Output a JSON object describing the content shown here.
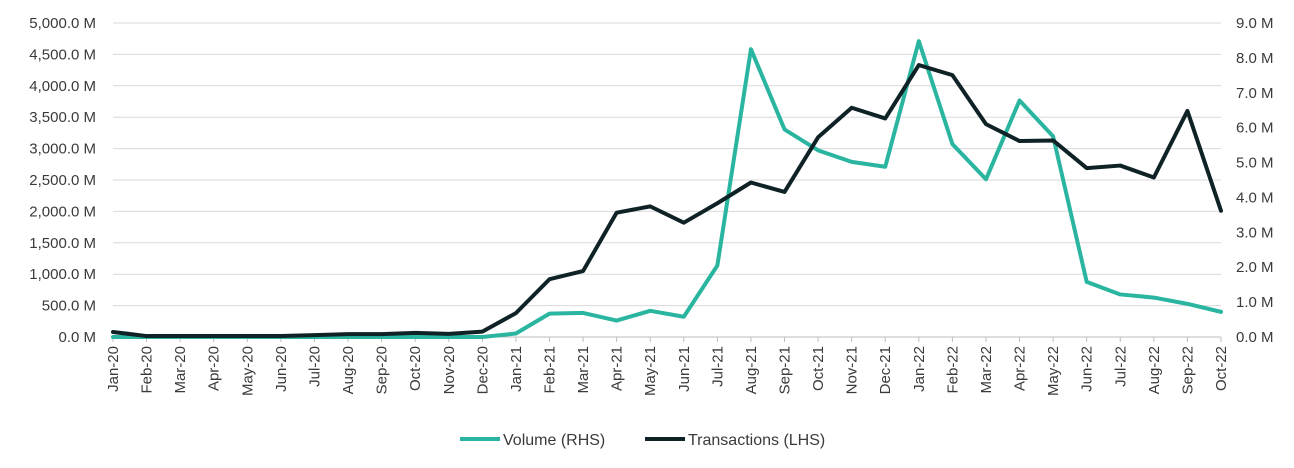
{
  "chart_data": {
    "type": "line",
    "categories": [
      "Jan-20",
      "Feb-20",
      "Mar-20",
      "Apr-20",
      "May-20",
      "Jun-20",
      "Jul-20",
      "Aug-20",
      "Sep-20",
      "Oct-20",
      "Nov-20",
      "Dec-20",
      "Jan-21",
      "Feb-21",
      "Mar-21",
      "Apr-21",
      "May-21",
      "Jun-21",
      "Jul-21",
      "Aug-21",
      "Sep-21",
      "Oct-21",
      "Nov-21",
      "Dec-21",
      "Jan-22",
      "Feb-22",
      "Mar-22",
      "Apr-22",
      "May-22",
      "Jun-22",
      "Jul-22",
      "Aug-22",
      "Sep-22",
      "Oct-22"
    ],
    "series": [
      {
        "name": "Volume (RHS)",
        "axis": "right",
        "color": "#2ab5a0",
        "values": [
          0.0,
          0.0,
          0.0,
          0.0,
          0.0,
          0.0,
          0.0,
          0.0,
          0.0,
          0.0,
          0.0,
          0.0,
          0.1,
          0.67,
          0.69,
          0.47,
          0.75,
          0.58,
          2.05,
          8.25,
          5.95,
          5.35,
          5.02,
          4.88,
          8.48,
          5.53,
          4.52,
          6.78,
          5.75,
          1.58,
          1.22,
          1.13,
          0.95,
          0.72
        ]
      },
      {
        "name": "Transactions (LHS)",
        "axis": "left",
        "color": "#0f2226",
        "values": [
          80,
          15,
          15,
          15,
          15,
          15,
          30,
          45,
          45,
          65,
          50,
          85,
          380,
          920,
          1050,
          1980,
          2080,
          1820,
          2130,
          2460,
          2310,
          3180,
          3650,
          3480,
          4330,
          4170,
          3390,
          3120,
          3130,
          2690,
          2730,
          2540,
          3600,
          2010
        ]
      }
    ],
    "y_left": {
      "min": 0,
      "max": 5000,
      "ticks": [
        "0.0 M",
        "500.0 M",
        "1,000.0 M",
        "1,500.0 M",
        "2,000.0 M",
        "2,500.0 M",
        "3,000.0 M",
        "3,500.0 M",
        "4,000.0 M",
        "4,500.0 M",
        "5,000.0 M"
      ]
    },
    "y_right": {
      "min": 0,
      "max": 9,
      "ticks": [
        "0.0 M",
        "1.0 M",
        "2.0 M",
        "3.0 M",
        "4.0 M",
        "5.0 M",
        "6.0 M",
        "7.0 M",
        "8.0 M",
        "9.0 M"
      ]
    },
    "grid": true,
    "legend_position": "bottom-center",
    "legend": [
      {
        "label": "Volume (RHS)",
        "color": "#2ab5a0"
      },
      {
        "label": "Transactions (LHS)",
        "color": "#0f2226"
      }
    ]
  }
}
